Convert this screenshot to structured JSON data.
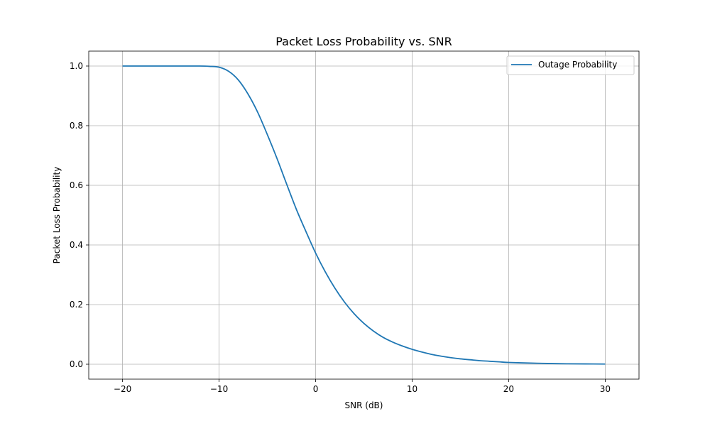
{
  "chart_data": {
    "type": "line",
    "title": "Packet Loss Probability vs. SNR",
    "xlabel": "SNR (dB)",
    "ylabel": "Packet Loss Probability",
    "xlim": [
      -23.5,
      33.5
    ],
    "ylim": [
      -0.05,
      1.05
    ],
    "xticks": [
      -20,
      -10,
      0,
      10,
      20,
      30
    ],
    "xtick_labels": [
      "−20",
      "−10",
      "0",
      "10",
      "20",
      "30"
    ],
    "yticks": [
      0.0,
      0.2,
      0.4,
      0.6,
      0.8,
      1.0
    ],
    "ytick_labels": [
      "0.0",
      "0.2",
      "0.4",
      "0.6",
      "0.8",
      "1.0"
    ],
    "grid": true,
    "legend_position": "top-right",
    "series": [
      {
        "name": "Outage Probability",
        "color": "#1f77b4",
        "x": [
          -20,
          -18,
          -16,
          -14,
          -12,
          -11,
          -10,
          -9,
          -8,
          -7,
          -6,
          -5,
          -4,
          -3,
          -2,
          -1,
          0,
          1,
          2,
          3,
          4,
          5,
          6,
          7,
          8,
          9,
          10,
          11,
          12,
          13,
          14,
          15,
          16,
          17,
          18,
          19,
          20,
          22,
          24,
          26,
          28,
          30
        ],
        "y": [
          1.0,
          1.0,
          1.0,
          1.0,
          1.0,
          0.999,
          0.996,
          0.982,
          0.953,
          0.906,
          0.845,
          0.77,
          0.69,
          0.604,
          0.52,
          0.445,
          0.373,
          0.31,
          0.255,
          0.208,
          0.169,
          0.137,
          0.111,
          0.09,
          0.074,
          0.061,
          0.05,
          0.041,
          0.033,
          0.027,
          0.022,
          0.018,
          0.015,
          0.012,
          0.01,
          0.008,
          0.006,
          0.004,
          0.0025,
          0.0015,
          0.001,
          0.0006
        ]
      }
    ]
  }
}
